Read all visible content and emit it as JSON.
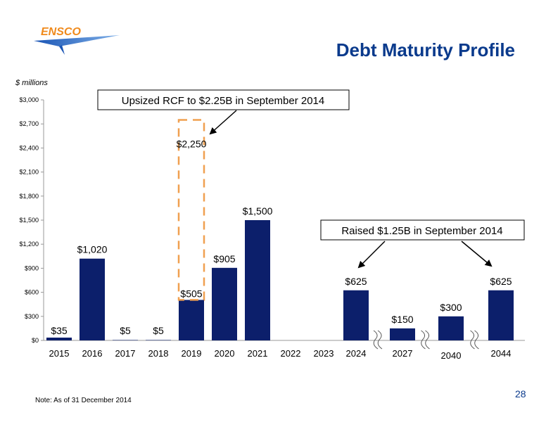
{
  "header": {
    "logo_text": "ENSCO",
    "title": "Debt Maturity Profile"
  },
  "units_label": "$ millions",
  "footer": {
    "note": "Note: As of 31 December 2014",
    "page_number": "28"
  },
  "colors": {
    "bar": "#0c1f6b",
    "title": "#0a3a8c",
    "logo_orange": "#f08a1c",
    "logo_blue": "#1a55b5",
    "dash_box": "#f0a050"
  },
  "chart_data": {
    "type": "bar",
    "categories": [
      "2015",
      "2016",
      "2017",
      "2018",
      "2019",
      "2020",
      "2021",
      "2022",
      "2023",
      "2024",
      "2027",
      "2040",
      "2044"
    ],
    "values": [
      35,
      1020,
      5,
      5,
      505,
      905,
      1500,
      0,
      0,
      625,
      150,
      300,
      625
    ],
    "data_labels": [
      "$35",
      "$1,020",
      "$5",
      "$5",
      "$505",
      "$905",
      "$1,500",
      "",
      "",
      "$625",
      "$150",
      "$300",
      "$625"
    ],
    "ylim": [
      0,
      3000
    ],
    "yticks": [
      0,
      300,
      600,
      900,
      1200,
      1500,
      1800,
      2100,
      2400,
      2700,
      3000
    ],
    "ytick_labels": [
      "$0",
      "$300",
      "$600",
      "$900",
      "$1,200",
      "$1,500",
      "$1,800",
      "$2,100",
      "$2,400",
      "$2,700",
      "$3,000"
    ],
    "axis_breaks_before": [
      "2027",
      "2040",
      "2044"
    ],
    "highlight": {
      "category": "2019",
      "value": 2750,
      "label": "$2,250"
    },
    "annotations": [
      {
        "text": "Upsized RCF to $2.25B in September 2014",
        "target": "2019"
      },
      {
        "text": "Raised $1.25B in September 2014",
        "targets": [
          "2024",
          "2044"
        ]
      }
    ],
    "grid": false,
    "legend": "none"
  }
}
